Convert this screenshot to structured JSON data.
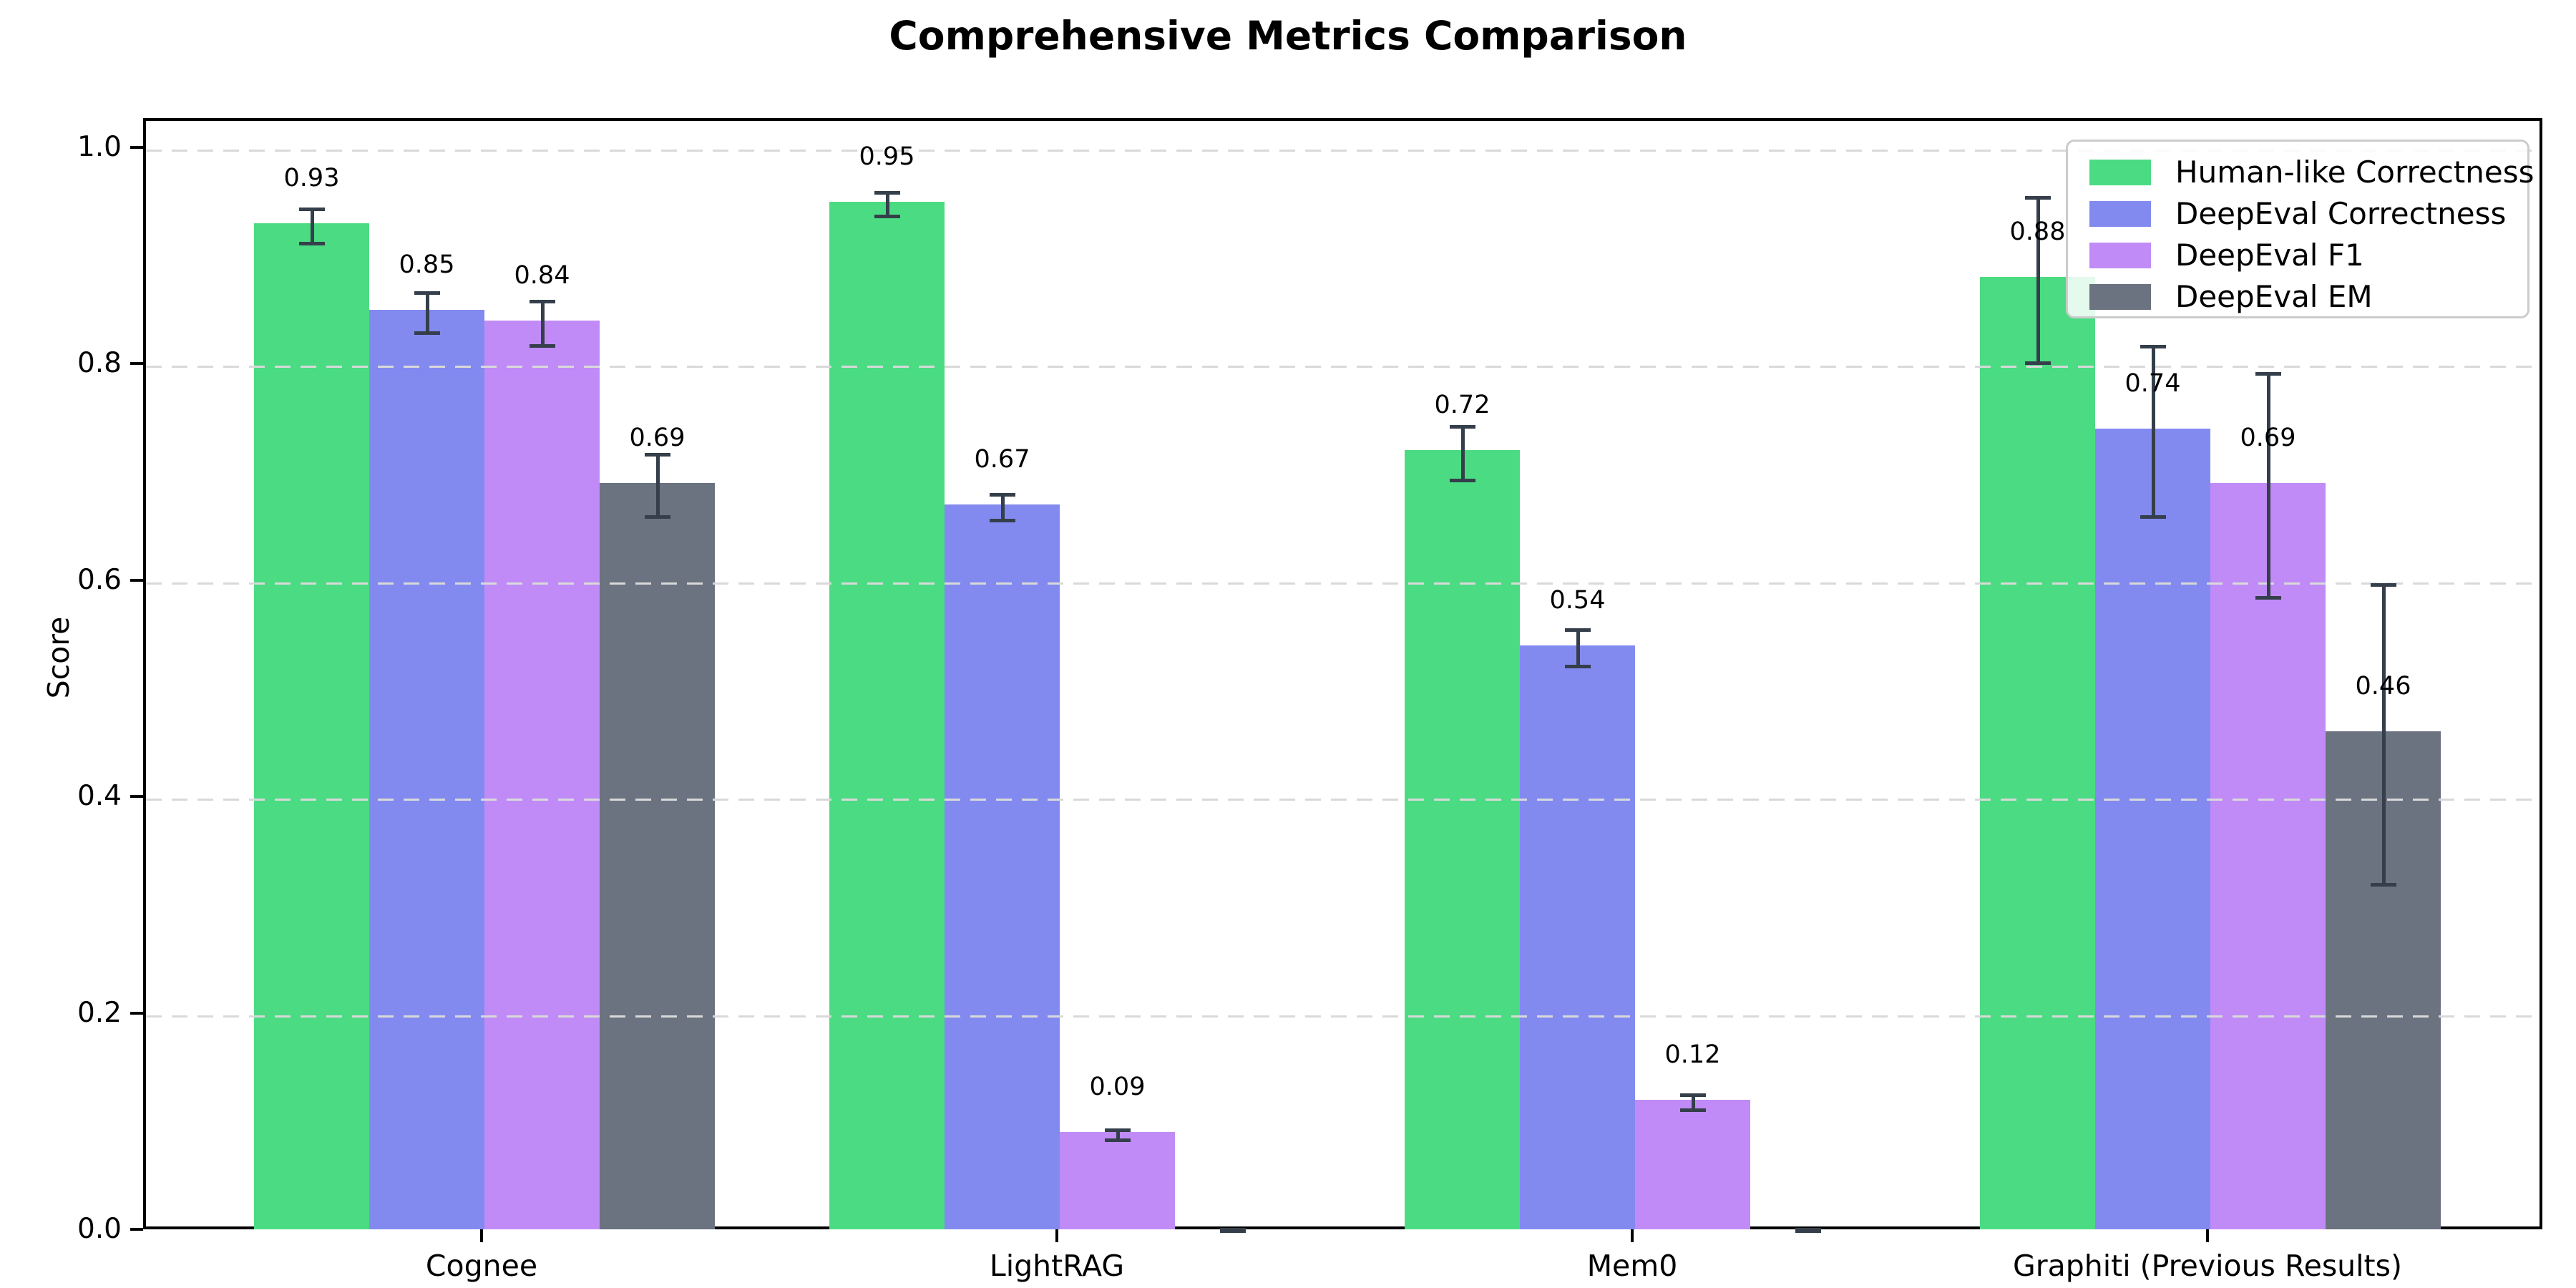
{
  "figure": {
    "background": "#ffffff"
  },
  "chart_data": {
    "type": "bar",
    "title": "Comprehensive Metrics Comparison",
    "xlabel": "",
    "ylabel": "Score",
    "categories": [
      "Cognee",
      "LightRAG",
      "Mem0",
      "Graphiti (Previous Results)"
    ],
    "series": [
      {
        "name": "Human-like Correctness",
        "color": "#4bdb82",
        "values": [
          0.93,
          0.95,
          0.72,
          0.88
        ],
        "value_labels": [
          "0.93",
          "0.95",
          "0.72",
          "0.88"
        ],
        "errors": [
          0.017,
          0.012,
          0.026,
          0.078
        ]
      },
      {
        "name": "DeepEval Correctness",
        "color": "#828af0",
        "values": [
          0.85,
          0.67,
          0.54,
          0.74
        ],
        "value_labels": [
          "0.85",
          "0.67",
          "0.54",
          "0.74"
        ],
        "errors": [
          0.02,
          0.013,
          0.018,
          0.08
        ]
      },
      {
        "name": "DeepEval F1",
        "color": "#c08bf6",
        "values": [
          0.84,
          0.09,
          0.12,
          0.69
        ],
        "value_labels": [
          "0.84",
          "0.09",
          "0.12",
          "0.69"
        ],
        "errors": [
          0.022,
          0.006,
          0.008,
          0.105
        ]
      },
      {
        "name": "DeepEval EM",
        "color": "#6b7280",
        "values": [
          0.69,
          0.0,
          0.0,
          0.46
        ],
        "value_labels": [
          "0.69",
          null,
          null,
          "0.46"
        ],
        "errors": [
          0.03,
          0.004,
          0.004,
          0.14
        ]
      }
    ],
    "yticks": [
      {
        "value": 0.0,
        "label": "0.0"
      },
      {
        "value": 0.2,
        "label": "0.2"
      },
      {
        "value": 0.4,
        "label": "0.4"
      },
      {
        "value": 0.6,
        "label": "0.6"
      },
      {
        "value": 0.8,
        "label": "0.8"
      },
      {
        "value": 1.0,
        "label": "1.0"
      }
    ],
    "ylim": [
      0,
      1.027
    ],
    "grid": {
      "visible": true,
      "style": "dashed",
      "color": "#d9d9d9",
      "drawn_over_bars": true
    },
    "error_bar_color": "#353f4b",
    "legend": {
      "position": "top-right"
    }
  }
}
